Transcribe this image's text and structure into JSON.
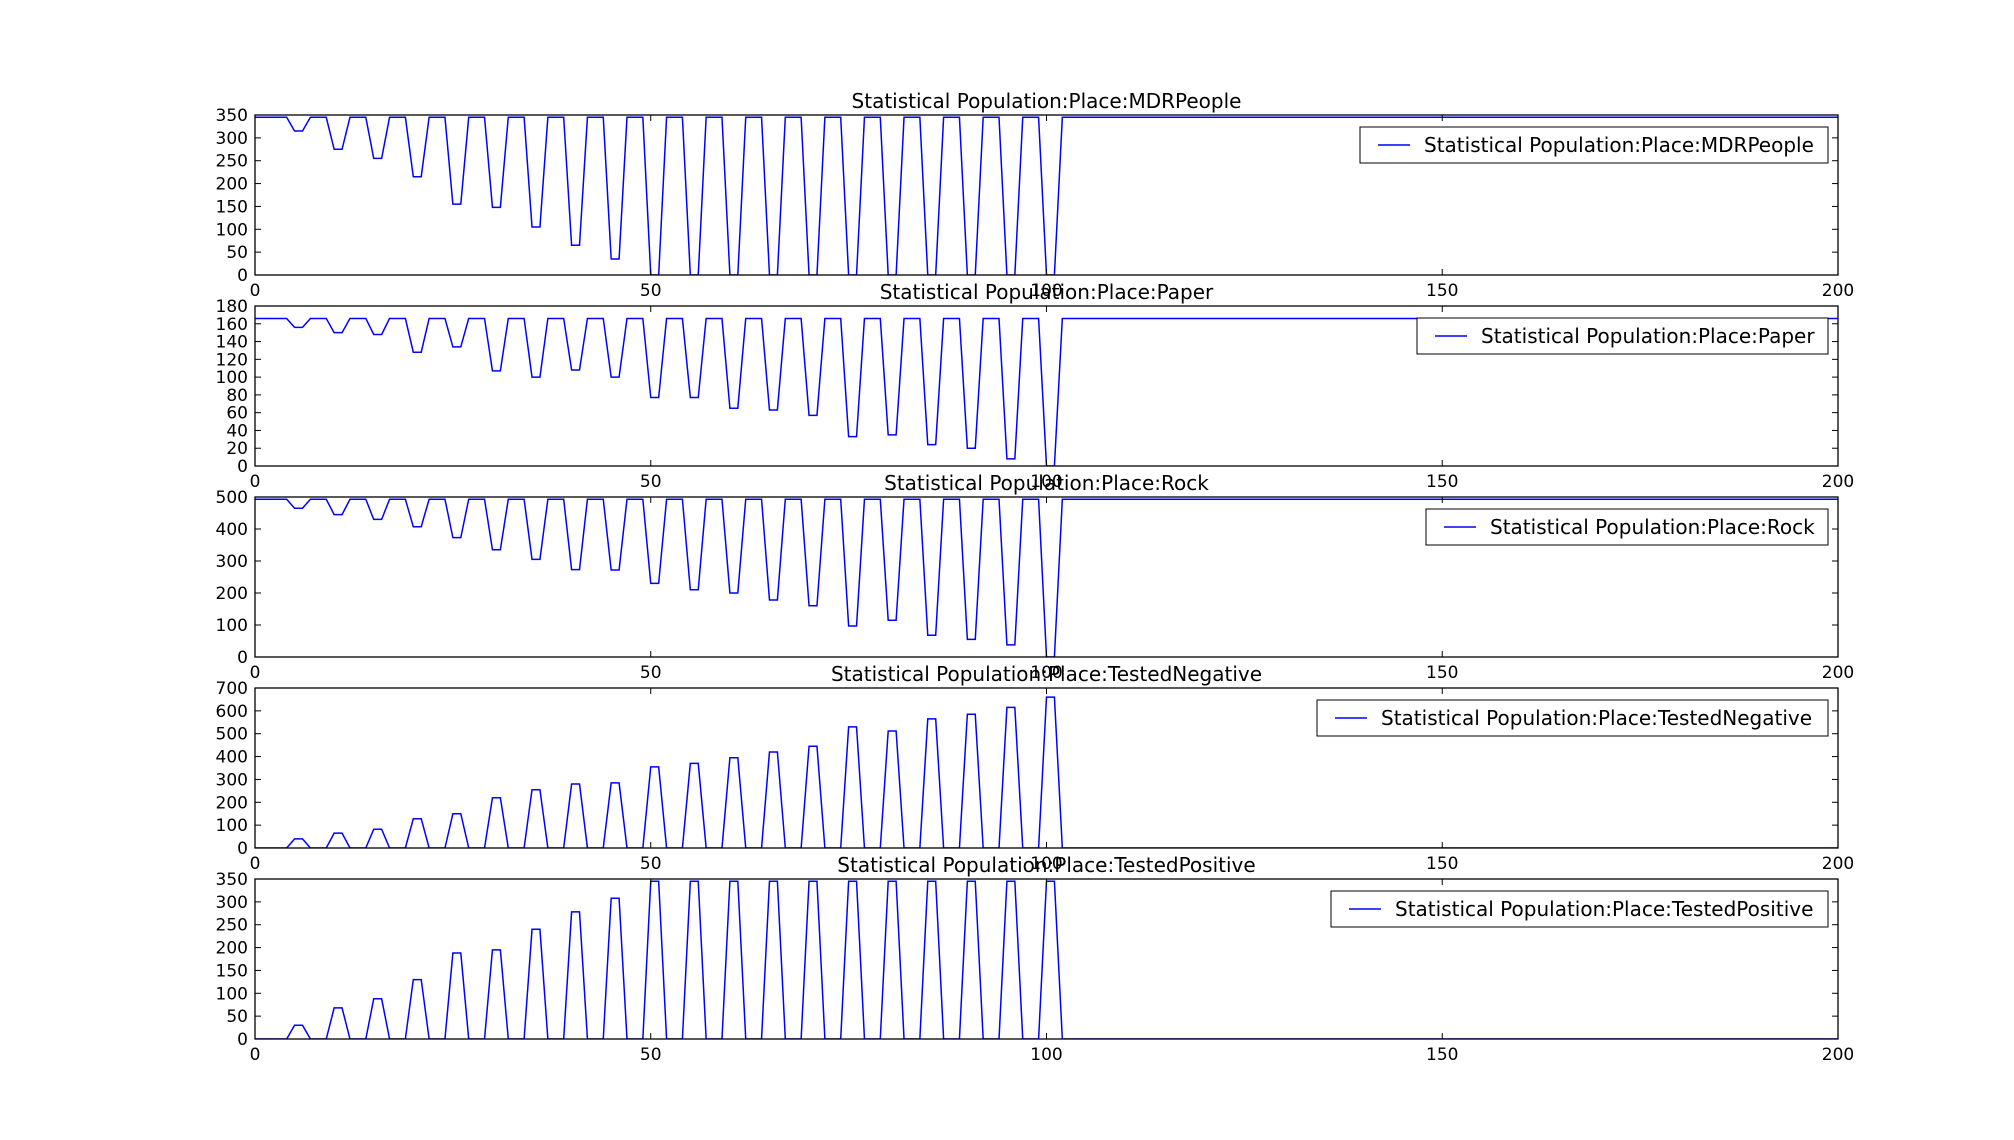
{
  "chart_data": [
    {
      "type": "line",
      "title": "Statistical Population:Place:MDRPeople",
      "xlabel": "",
      "ylabel": "",
      "xlim": [
        0,
        200
      ],
      "ylim": [
        0,
        350
      ],
      "xticks": [
        "0",
        "50",
        "100",
        "150",
        "200"
      ],
      "yticks": [
        "0",
        "50",
        "100",
        "150",
        "200",
        "250",
        "300",
        "350"
      ],
      "grid": false,
      "legend": "top-right",
      "series": [
        {
          "name": "Statistical Population:Place:MDRPeople",
          "color": "#0000ff",
          "x": [
            0,
            4,
            5,
            6,
            7,
            9,
            10,
            11,
            12,
            14,
            15,
            16,
            17,
            19,
            20,
            21,
            22,
            24,
            25,
            26,
            27,
            29,
            30,
            31,
            32,
            34,
            35,
            36,
            37,
            39,
            40,
            41,
            42,
            44,
            45,
            46,
            47,
            49,
            50,
            51,
            52,
            54,
            55,
            56,
            57,
            59,
            60,
            61,
            62,
            64,
            65,
            66,
            67,
            69,
            70,
            71,
            72,
            74,
            75,
            76,
            77,
            79,
            80,
            81,
            82,
            84,
            85,
            86,
            87,
            89,
            90,
            91,
            92,
            94,
            95,
            96,
            97,
            99,
            100,
            101,
            102,
            200
          ],
          "y": [
            345,
            345,
            315,
            315,
            345,
            345,
            275,
            275,
            345,
            345,
            255,
            255,
            345,
            345,
            215,
            215,
            345,
            345,
            155,
            155,
            345,
            345,
            148,
            148,
            345,
            345,
            105,
            105,
            345,
            345,
            65,
            65,
            345,
            345,
            35,
            35,
            345,
            345,
            0,
            0,
            345,
            345,
            0,
            0,
            345,
            345,
            0,
            0,
            345,
            345,
            0,
            0,
            345,
            345,
            0,
            0,
            345,
            345,
            0,
            0,
            345,
            345,
            0,
            0,
            345,
            345,
            0,
            0,
            345,
            345,
            0,
            0,
            345,
            345,
            0,
            0,
            345,
            345,
            0,
            0,
            345,
            345
          ]
        }
      ]
    },
    {
      "type": "line",
      "title": "Statistical Population:Place:Paper",
      "xlabel": "",
      "ylabel": "",
      "xlim": [
        0,
        200
      ],
      "ylim": [
        0,
        180
      ],
      "xticks": [
        "0",
        "50",
        "100",
        "150",
        "200"
      ],
      "yticks": [
        "0",
        "20",
        "40",
        "60",
        "80",
        "100",
        "120",
        "140",
        "160",
        "180"
      ],
      "grid": false,
      "legend": "top-right",
      "series": [
        {
          "name": "Statistical Population:Place:Paper",
          "color": "#0000ff",
          "x": [
            0,
            4,
            5,
            6,
            7,
            9,
            10,
            11,
            12,
            14,
            15,
            16,
            17,
            19,
            20,
            21,
            22,
            24,
            25,
            26,
            27,
            29,
            30,
            31,
            32,
            34,
            35,
            36,
            37,
            39,
            40,
            41,
            42,
            44,
            45,
            46,
            47,
            49,
            50,
            51,
            52,
            54,
            55,
            56,
            57,
            59,
            60,
            61,
            62,
            64,
            65,
            66,
            67,
            69,
            70,
            71,
            72,
            74,
            75,
            76,
            77,
            79,
            80,
            81,
            82,
            84,
            85,
            86,
            87,
            89,
            90,
            91,
            92,
            94,
            95,
            96,
            97,
            99,
            100,
            101,
            102,
            200
          ],
          "y": [
            166,
            166,
            156,
            156,
            166,
            166,
            150,
            150,
            166,
            166,
            148,
            148,
            166,
            166,
            128,
            128,
            166,
            166,
            134,
            134,
            166,
            166,
            107,
            107,
            166,
            166,
            100,
            100,
            166,
            166,
            108,
            108,
            166,
            166,
            100,
            100,
            166,
            166,
            77,
            77,
            166,
            166,
            77,
            77,
            166,
            166,
            65,
            65,
            166,
            166,
            63,
            63,
            166,
            166,
            57,
            57,
            166,
            166,
            33,
            33,
            166,
            166,
            35,
            35,
            166,
            166,
            24,
            24,
            166,
            166,
            20,
            20,
            166,
            166,
            8,
            8,
            166,
            166,
            0,
            0,
            166,
            166
          ]
        }
      ]
    },
    {
      "type": "line",
      "title": "Statistical Population:Place:Rock",
      "xlabel": "",
      "ylabel": "",
      "xlim": [
        0,
        200
      ],
      "ylim": [
        0,
        500
      ],
      "xticks": [
        "0",
        "50",
        "100",
        "150",
        "200"
      ],
      "yticks": [
        "0",
        "100",
        "200",
        "300",
        "400",
        "500"
      ],
      "grid": false,
      "legend": "top-right",
      "series": [
        {
          "name": "Statistical Population:Place:Rock",
          "color": "#0000ff",
          "x": [
            0,
            4,
            5,
            6,
            7,
            9,
            10,
            11,
            12,
            14,
            15,
            16,
            17,
            19,
            20,
            21,
            22,
            24,
            25,
            26,
            27,
            29,
            30,
            31,
            32,
            34,
            35,
            36,
            37,
            39,
            40,
            41,
            42,
            44,
            45,
            46,
            47,
            49,
            50,
            51,
            52,
            54,
            55,
            56,
            57,
            59,
            60,
            61,
            62,
            64,
            65,
            66,
            67,
            69,
            70,
            71,
            72,
            74,
            75,
            76,
            77,
            79,
            80,
            81,
            82,
            84,
            85,
            86,
            87,
            89,
            90,
            91,
            92,
            94,
            95,
            96,
            97,
            99,
            100,
            101,
            102,
            200
          ],
          "y": [
            493,
            493,
            465,
            465,
            493,
            493,
            445,
            445,
            493,
            493,
            430,
            430,
            493,
            493,
            407,
            407,
            493,
            493,
            373,
            373,
            493,
            493,
            335,
            335,
            493,
            493,
            305,
            305,
            493,
            493,
            273,
            273,
            493,
            493,
            272,
            272,
            493,
            493,
            230,
            230,
            493,
            493,
            210,
            210,
            493,
            493,
            200,
            200,
            493,
            493,
            178,
            178,
            493,
            493,
            160,
            160,
            493,
            493,
            97,
            97,
            493,
            493,
            115,
            115,
            493,
            493,
            68,
            68,
            493,
            493,
            55,
            55,
            493,
            493,
            38,
            38,
            493,
            493,
            0,
            0,
            493,
            493
          ]
        }
      ]
    },
    {
      "type": "line",
      "title": "Statistical Population:Place:TestedNegative",
      "xlabel": "",
      "ylabel": "",
      "xlim": [
        0,
        200
      ],
      "ylim": [
        0,
        700
      ],
      "xticks": [
        "0",
        "50",
        "100",
        "150",
        "200"
      ],
      "yticks": [
        "0",
        "100",
        "200",
        "300",
        "400",
        "500",
        "600",
        "700"
      ],
      "grid": false,
      "legend": "top-right",
      "series": [
        {
          "name": "Statistical Population:Place:TestedNegative",
          "color": "#0000ff",
          "x": [
            0,
            4,
            5,
            6,
            7,
            9,
            10,
            11,
            12,
            14,
            15,
            16,
            17,
            19,
            20,
            21,
            22,
            24,
            25,
            26,
            27,
            29,
            30,
            31,
            32,
            34,
            35,
            36,
            37,
            39,
            40,
            41,
            42,
            44,
            45,
            46,
            47,
            49,
            50,
            51,
            52,
            54,
            55,
            56,
            57,
            59,
            60,
            61,
            62,
            64,
            65,
            66,
            67,
            69,
            70,
            71,
            72,
            74,
            75,
            76,
            77,
            79,
            80,
            81,
            82,
            84,
            85,
            86,
            87,
            89,
            90,
            91,
            92,
            94,
            95,
            96,
            97,
            99,
            100,
            101,
            102,
            200
          ],
          "y": [
            0,
            0,
            40,
            40,
            0,
            0,
            65,
            65,
            0,
            0,
            82,
            82,
            0,
            0,
            128,
            128,
            0,
            0,
            150,
            150,
            0,
            0,
            220,
            220,
            0,
            0,
            255,
            255,
            0,
            0,
            280,
            280,
            0,
            0,
            285,
            285,
            0,
            0,
            355,
            355,
            0,
            0,
            370,
            370,
            0,
            0,
            395,
            395,
            0,
            0,
            420,
            420,
            0,
            0,
            445,
            445,
            0,
            0,
            530,
            530,
            0,
            0,
            512,
            512,
            0,
            0,
            565,
            565,
            0,
            0,
            585,
            585,
            0,
            0,
            615,
            615,
            0,
            0,
            660,
            660,
            0,
            0
          ]
        }
      ]
    },
    {
      "type": "line",
      "title": "Statistical Population:Place:TestedPositive",
      "xlabel": "",
      "ylabel": "",
      "xlim": [
        0,
        200
      ],
      "ylim": [
        0,
        350
      ],
      "xticks": [
        "0",
        "50",
        "100",
        "150",
        "200"
      ],
      "yticks": [
        "0",
        "50",
        "100",
        "150",
        "200",
        "250",
        "300",
        "350"
      ],
      "grid": false,
      "legend": "top-right",
      "series": [
        {
          "name": "Statistical Population:Place:TestedPositive",
          "color": "#0000ff",
          "x": [
            0,
            4,
            5,
            6,
            7,
            9,
            10,
            11,
            12,
            14,
            15,
            16,
            17,
            19,
            20,
            21,
            22,
            24,
            25,
            26,
            27,
            29,
            30,
            31,
            32,
            34,
            35,
            36,
            37,
            39,
            40,
            41,
            42,
            44,
            45,
            46,
            47,
            49,
            50,
            51,
            52,
            54,
            55,
            56,
            57,
            59,
            60,
            61,
            62,
            64,
            65,
            66,
            67,
            69,
            70,
            71,
            72,
            74,
            75,
            76,
            77,
            79,
            80,
            81,
            82,
            84,
            85,
            86,
            87,
            89,
            90,
            91,
            92,
            94,
            95,
            96,
            97,
            99,
            100,
            101,
            102,
            200
          ],
          "y": [
            0,
            0,
            30,
            30,
            0,
            0,
            68,
            68,
            0,
            0,
            88,
            88,
            0,
            0,
            130,
            130,
            0,
            0,
            188,
            188,
            0,
            0,
            195,
            195,
            0,
            0,
            240,
            240,
            0,
            0,
            278,
            278,
            0,
            0,
            308,
            308,
            0,
            0,
            345,
            345,
            0,
            0,
            345,
            345,
            0,
            0,
            345,
            345,
            0,
            0,
            345,
            345,
            0,
            0,
            345,
            345,
            0,
            0,
            345,
            345,
            0,
            0,
            345,
            345,
            0,
            0,
            345,
            345,
            0,
            0,
            345,
            345,
            0,
            0,
            345,
            345,
            0,
            0,
            345,
            345,
            0,
            0
          ]
        }
      ]
    }
  ]
}
